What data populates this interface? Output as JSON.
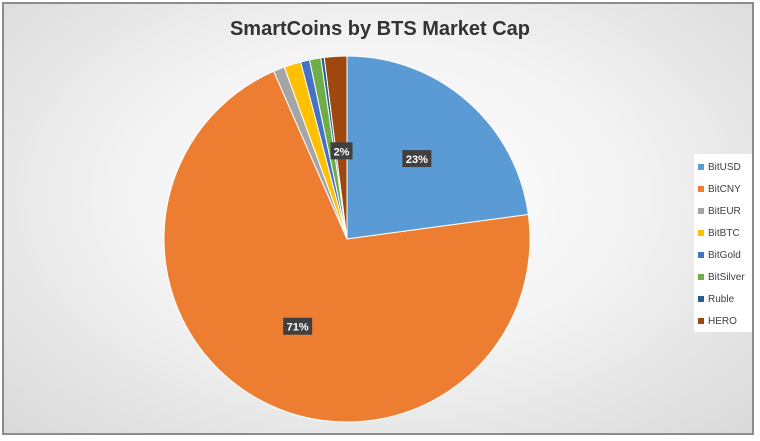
{
  "chart_data": {
    "type": "pie",
    "title": "SmartCoins by BTS Market Cap",
    "categories": [
      "BitUSD",
      "BitCNY",
      "BitEUR",
      "BitBTC",
      "BitGold",
      "BitSilver",
      "Ruble",
      "HERO"
    ],
    "values": [
      23,
      71,
      1,
      1.5,
      0.8,
      1,
      0.3,
      2
    ],
    "colors": [
      "#5b9bd5",
      "#ed7d31",
      "#a5a5a5",
      "#ffc000",
      "#4472c4",
      "#70ad47",
      "#255e91",
      "#9e480e"
    ],
    "data_labels": [
      "23%",
      "71%",
      "",
      "",
      "",
      "",
      "",
      "2%"
    ],
    "legend_position": "right"
  }
}
